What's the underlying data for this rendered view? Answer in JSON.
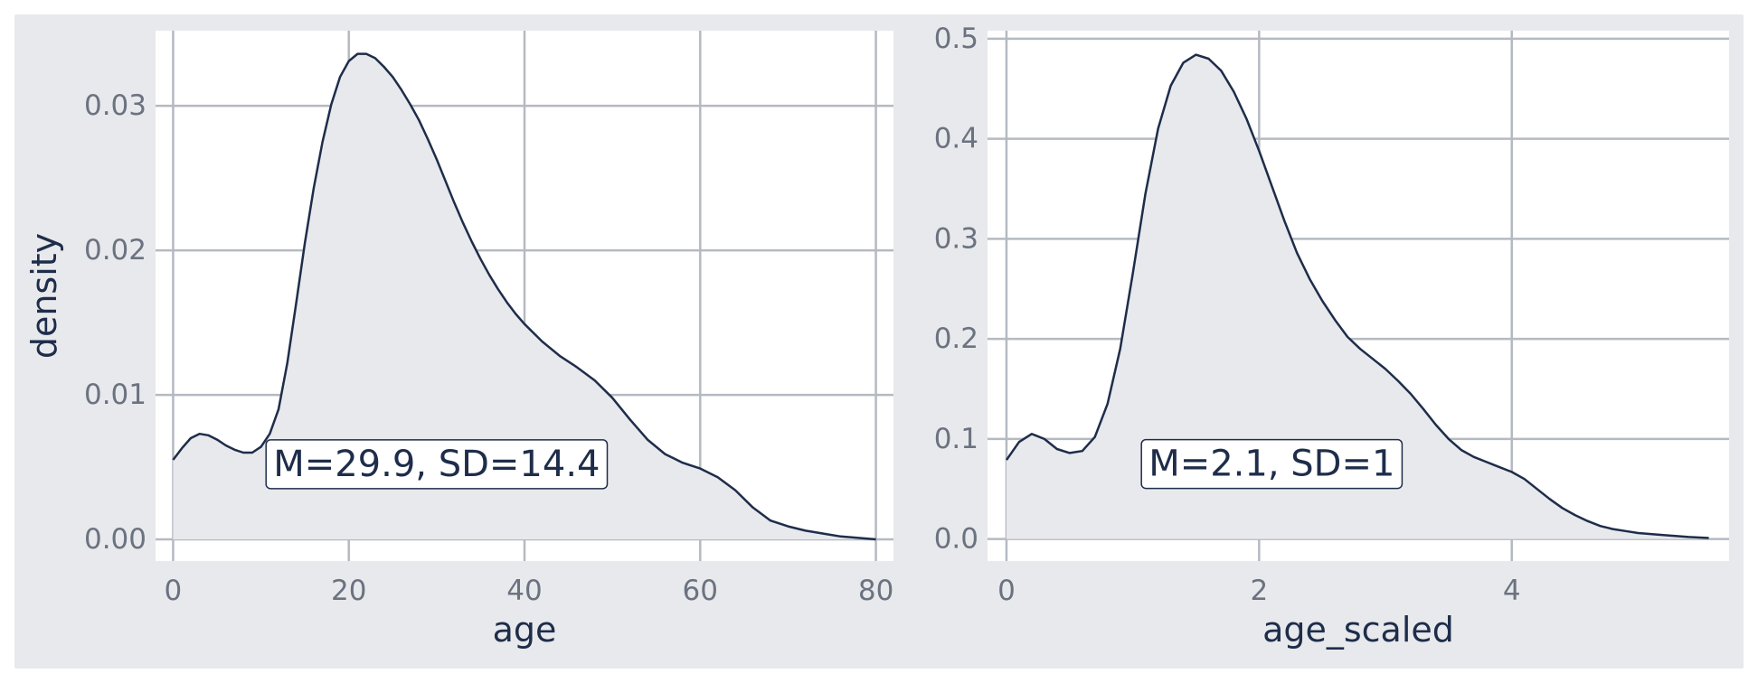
{
  "figure": {
    "background": "#e8e9ec",
    "panel_background": "#ffffff",
    "grid_color": "#b5b9c2",
    "line_color": "#1e2d4a",
    "fill_color": "#e8e9ec"
  },
  "chart_data": [
    {
      "type": "area",
      "xlabel": "age",
      "ylabel": "density",
      "xlim": [
        -2,
        82
      ],
      "ylim": [
        -0.0015,
        0.0352
      ],
      "x_ticks": [
        0,
        20,
        40,
        60,
        80
      ],
      "x_tick_labels": [
        "0",
        "20",
        "40",
        "60",
        "80"
      ],
      "y_ticks": [
        0,
        0.01,
        0.02,
        0.03
      ],
      "y_tick_labels": [
        "0.00",
        "0.01",
        "0.02",
        "0.03"
      ],
      "grid": true,
      "annotation": {
        "text": "M=29.9, SD=14.4",
        "x": 30,
        "y": 0.0052
      },
      "x": [
        0,
        1,
        2,
        3,
        4,
        5,
        6,
        7,
        8,
        9,
        10,
        11,
        12,
        13,
        14,
        15,
        16,
        17,
        18,
        19,
        20,
        21,
        22,
        23,
        24,
        25,
        26,
        27,
        28,
        29,
        30,
        31,
        32,
        33,
        34,
        35,
        36,
        37,
        38,
        39,
        40,
        42,
        44,
        46,
        48,
        50,
        52,
        54,
        56,
        58,
        60,
        62,
        64,
        66,
        68,
        70,
        72,
        74,
        76,
        78,
        80
      ],
      "values": [
        0.0055,
        0.0063,
        0.007,
        0.0073,
        0.0072,
        0.0069,
        0.0065,
        0.0062,
        0.006,
        0.006,
        0.0064,
        0.0073,
        0.009,
        0.0122,
        0.0163,
        0.0205,
        0.0243,
        0.0275,
        0.0301,
        0.032,
        0.0331,
        0.0336,
        0.0336,
        0.0333,
        0.0327,
        0.032,
        0.0311,
        0.0301,
        0.029,
        0.0277,
        0.0263,
        0.0248,
        0.0233,
        0.0219,
        0.0206,
        0.0194,
        0.0183,
        0.0173,
        0.0164,
        0.0156,
        0.0149,
        0.0137,
        0.0127,
        0.0119,
        0.011,
        0.0098,
        0.0083,
        0.0069,
        0.0059,
        0.0053,
        0.0049,
        0.0043,
        0.0034,
        0.0022,
        0.0013,
        0.0009,
        0.0006,
        0.0004,
        0.0002,
        0.0001,
        0.0
      ]
    },
    {
      "type": "area",
      "xlabel": "age_scaled",
      "ylabel": "",
      "xlim": [
        -0.15,
        5.72
      ],
      "ylim": [
        -0.022,
        0.508
      ],
      "x_ticks": [
        0,
        2,
        4
      ],
      "x_tick_labels": [
        "0",
        "2",
        "4"
      ],
      "y_ticks": [
        0,
        0.1,
        0.2,
        0.3,
        0.4,
        0.5
      ],
      "y_tick_labels": [
        "0.0",
        "0.1",
        "0.2",
        "0.3",
        "0.4",
        "0.5"
      ],
      "grid": true,
      "annotation": {
        "text": "M=2.1, SD=1",
        "x": 2.1,
        "y": 0.075
      },
      "x": [
        0,
        0.1,
        0.2,
        0.3,
        0.4,
        0.5,
        0.6,
        0.7,
        0.8,
        0.9,
        1.0,
        1.1,
        1.2,
        1.3,
        1.4,
        1.5,
        1.6,
        1.7,
        1.8,
        1.9,
        2.0,
        2.1,
        2.2,
        2.3,
        2.4,
        2.5,
        2.6,
        2.7,
        2.8,
        2.9,
        3.0,
        3.1,
        3.2,
        3.3,
        3.4,
        3.5,
        3.6,
        3.7,
        3.8,
        3.9,
        4.0,
        4.1,
        4.2,
        4.3,
        4.4,
        4.5,
        4.6,
        4.7,
        4.8,
        4.9,
        5.0,
        5.2,
        5.4,
        5.56
      ],
      "values": [
        0.079,
        0.097,
        0.105,
        0.1,
        0.09,
        0.086,
        0.088,
        0.102,
        0.135,
        0.19,
        0.265,
        0.345,
        0.41,
        0.453,
        0.476,
        0.484,
        0.48,
        0.468,
        0.447,
        0.42,
        0.388,
        0.353,
        0.318,
        0.286,
        0.26,
        0.238,
        0.219,
        0.202,
        0.19,
        0.18,
        0.17,
        0.158,
        0.145,
        0.13,
        0.114,
        0.1,
        0.089,
        0.082,
        0.077,
        0.072,
        0.067,
        0.06,
        0.05,
        0.04,
        0.031,
        0.024,
        0.018,
        0.013,
        0.01,
        0.008,
        0.006,
        0.004,
        0.002,
        0.001
      ]
    }
  ]
}
